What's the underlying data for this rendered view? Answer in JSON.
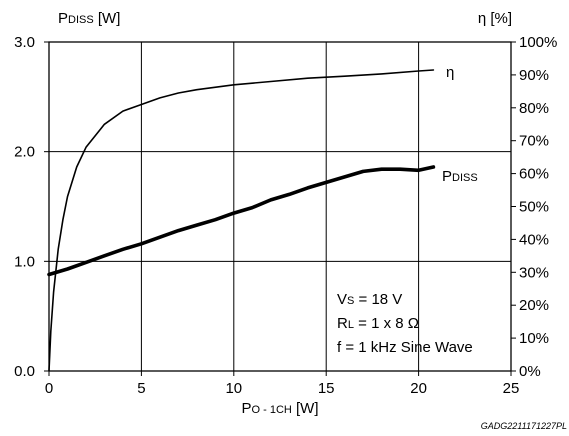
{
  "chart_data": {
    "type": "line",
    "x_axis": {
      "label_main": "P",
      "label_sub": "O - 1CH",
      "label_unit": " [W]",
      "range": [
        0,
        25
      ],
      "ticks": [
        0,
        5,
        10,
        15,
        20,
        25
      ],
      "tick_labels": [
        "0",
        "5",
        "10",
        "15",
        "20",
        "25"
      ]
    },
    "y_left": {
      "label_main": "P",
      "label_sub": "DISS",
      "label_unit": " [W]",
      "range": [
        0,
        3
      ],
      "ticks": [
        0,
        1,
        2,
        3
      ],
      "tick_labels": [
        "0.0",
        "1.0",
        "2.0",
        "3.0"
      ]
    },
    "y_right": {
      "label": "η [%]",
      "range": [
        0,
        100
      ],
      "ticks": [
        0,
        10,
        20,
        30,
        40,
        50,
        60,
        70,
        80,
        90,
        100
      ],
      "tick_labels": [
        "0%",
        "10%",
        "20%",
        "30%",
        "40%",
        "50%",
        "60%",
        "70%",
        "80%",
        "90%",
        "100%"
      ]
    },
    "grid": true,
    "series": [
      {
        "name": "η",
        "axis": "right",
        "label_main": "η",
        "label_sub": "",
        "x": [
          0,
          0.1,
          0.25,
          0.5,
          0.75,
          1,
          1.5,
          2,
          3,
          4,
          5,
          6,
          7,
          8,
          10,
          12,
          14,
          16,
          18,
          20,
          20.8
        ],
        "y": [
          0,
          12,
          24,
          37,
          46,
          53,
          62,
          68,
          75,
          79,
          81,
          83,
          84.5,
          85.5,
          87,
          88,
          89,
          89.6,
          90.3,
          91.2,
          91.5
        ]
      },
      {
        "name": "PDISS",
        "axis": "left",
        "label_main": "P",
        "label_sub": "DISS",
        "x": [
          0,
          1,
          2,
          3,
          4,
          5,
          6,
          7,
          8,
          9,
          10,
          11,
          12,
          13,
          14,
          15,
          16,
          17,
          18,
          19,
          20,
          20.8
        ],
        "y": [
          0.88,
          0.93,
          0.99,
          1.05,
          1.11,
          1.16,
          1.22,
          1.28,
          1.33,
          1.38,
          1.44,
          1.49,
          1.56,
          1.61,
          1.67,
          1.72,
          1.77,
          1.82,
          1.84,
          1.84,
          1.83,
          1.86
        ]
      }
    ],
    "annotation_lines": [
      {
        "main": "V",
        "sub": "S",
        "rest": " = 18 V"
      },
      {
        "main": "R",
        "sub": "L",
        "rest": " = 1 x 8 Ω"
      },
      {
        "main": "f = 1 kHz Sine Wave",
        "sub": "",
        "rest": ""
      }
    ],
    "figure_id": "GADG2211171227PL"
  }
}
